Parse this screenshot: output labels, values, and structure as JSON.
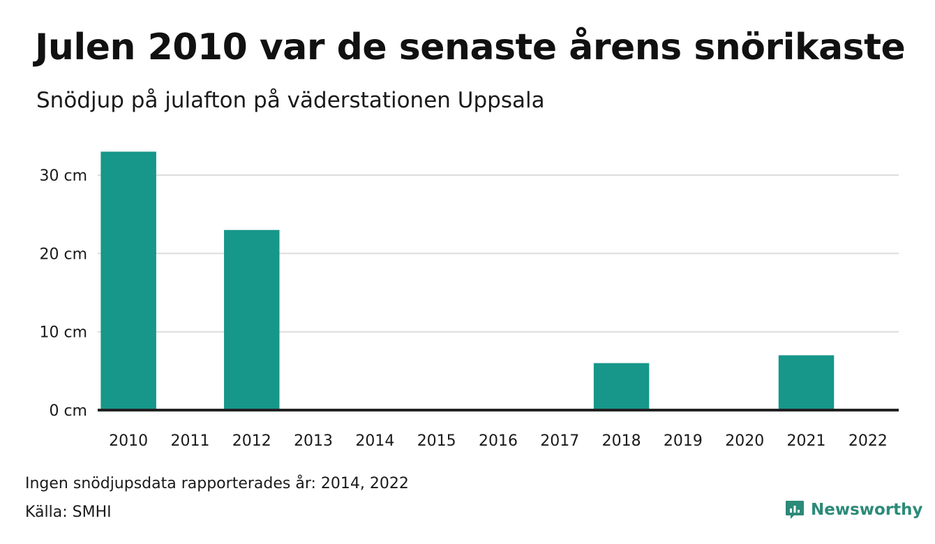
{
  "title": "Julen 2010 var de senaste årens snörikaste",
  "subtitle": "Snödjup på julafton på väderstationen Uppsala",
  "note": "Ingen snödjupsdata rapporterades år: 2014, 2022",
  "source": "Källa: SMHI",
  "brand": {
    "name": "Newsworthy",
    "icon": "newsworthy-logo-icon",
    "color": "#2c8a78"
  },
  "chart_data": {
    "type": "bar",
    "categories": [
      "2010",
      "2011",
      "2012",
      "2013",
      "2014",
      "2015",
      "2016",
      "2017",
      "2018",
      "2019",
      "2020",
      "2021",
      "2022"
    ],
    "values": [
      33,
      0,
      23,
      0,
      null,
      0,
      0,
      0,
      6,
      0,
      0,
      7,
      null
    ],
    "ylim": [
      0,
      35
    ],
    "yticks": [
      0,
      10,
      20,
      30
    ],
    "ytick_labels": [
      "0 cm",
      "10 cm",
      "20 cm",
      "30 cm"
    ],
    "unit": "cm",
    "xlabel": "",
    "ylabel": "",
    "bar_color": "#17968a",
    "grid": true
  }
}
